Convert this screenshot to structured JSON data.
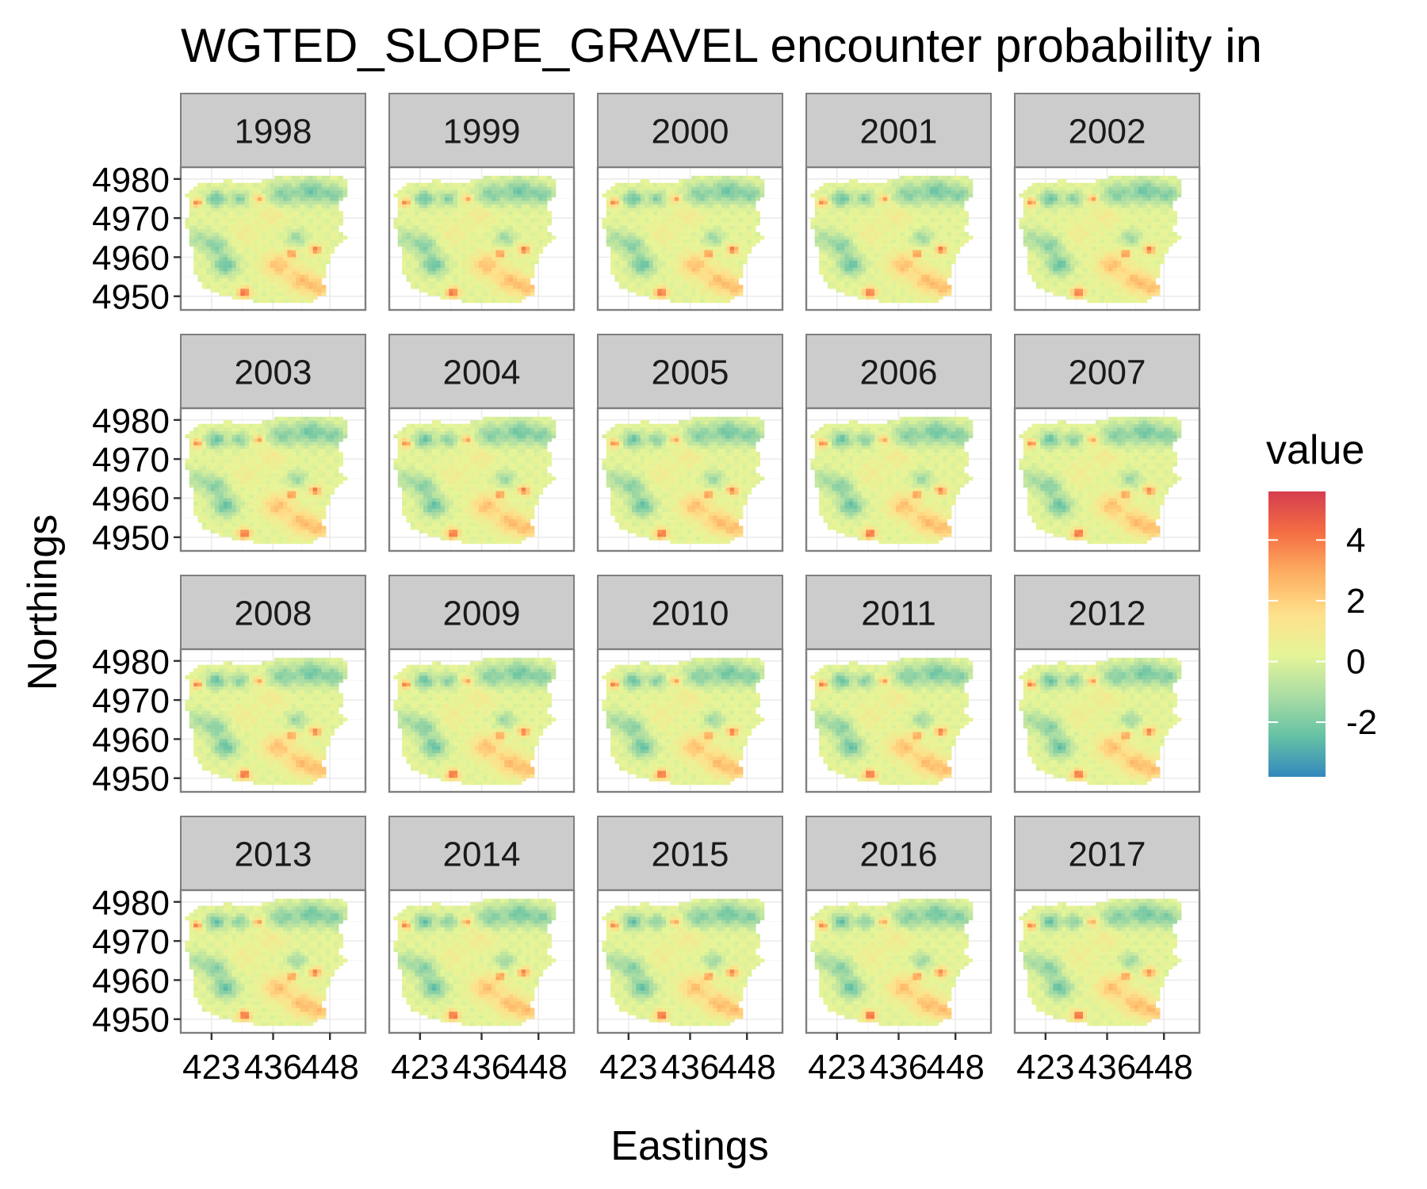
{
  "chart_data": {
    "type": "heatmap",
    "title": "WGTED_SLOPE_GRAVEL encounter probability in",
    "xlabel": "Eastings",
    "ylabel": "Northings",
    "facets": [
      "1998",
      "1999",
      "2000",
      "2001",
      "2002",
      "2003",
      "2004",
      "2005",
      "2006",
      "2007",
      "2008",
      "2009",
      "2010",
      "2011",
      "2012",
      "2013",
      "2014",
      "2015",
      "2016",
      "2017"
    ],
    "facet_layout": {
      "rows": 4,
      "cols": 5
    },
    "x_ticks": [
      423,
      436,
      448
    ],
    "x_tick_labels": [
      "423",
      "436",
      "448"
    ],
    "y_ticks": [
      4950,
      4960,
      4970,
      4980
    ],
    "y_tick_labels": [
      "4950",
      "4960",
      "4970",
      "4980"
    ],
    "xlim": [
      416.5,
      455.5
    ],
    "ylim": [
      4946.5,
      4983
    ],
    "grid": true,
    "legend": {
      "title": "value",
      "position": "right",
      "range": [
        -3.8,
        5.6
      ],
      "ticks": [
        -2,
        0,
        2,
        4
      ],
      "tick_labels": [
        "-2",
        "0",
        "2",
        "4"
      ],
      "colors": [
        "#3288bd",
        "#66c2a5",
        "#abdda4",
        "#e6f598",
        "#fee08b",
        "#fdae61",
        "#f46d43",
        "#d53e4f"
      ]
    },
    "field_components": [
      {
        "x": 424,
        "y": 4975,
        "value": -2.6,
        "spread": 2.0
      },
      {
        "x": 429,
        "y": 4975,
        "value": -2.0,
        "spread": 1.8
      },
      {
        "x": 438,
        "y": 4976,
        "value": -2.0,
        "spread": 3.0
      },
      {
        "x": 444,
        "y": 4977,
        "value": -2.4,
        "spread": 3.0
      },
      {
        "x": 449,
        "y": 4976,
        "value": -2.0,
        "spread": 2.5
      },
      {
        "x": 426,
        "y": 4958,
        "value": -2.6,
        "spread": 2.5
      },
      {
        "x": 424,
        "y": 4963,
        "value": -2.0,
        "spread": 2.5
      },
      {
        "x": 420,
        "y": 4965,
        "value": -1.2,
        "spread": 2.5
      },
      {
        "x": 441,
        "y": 4965,
        "value": -1.6,
        "spread": 2.0
      },
      {
        "x": 437,
        "y": 4958,
        "value": 2.2,
        "spread": 3.0
      },
      {
        "x": 442,
        "y": 4954,
        "value": 2.2,
        "spread": 3.0
      },
      {
        "x": 446,
        "y": 4952,
        "value": 2.0,
        "spread": 2.5
      },
      {
        "x": 445,
        "y": 4962,
        "value": 3.8,
        "spread": 1.2
      },
      {
        "x": 440,
        "y": 4961,
        "value": 3.5,
        "spread": 1.0
      },
      {
        "x": 433,
        "y": 4975,
        "value": 3.0,
        "spread": 1.0
      },
      {
        "x": 420,
        "y": 4974,
        "value": 3.8,
        "spread": 1.0
      },
      {
        "x": 430,
        "y": 4951,
        "value": 4.5,
        "spread": 1.3
      },
      {
        "x": 436,
        "y": 4971,
        "value": 0.8,
        "spread": 3.0
      },
      {
        "x": 430,
        "y": 4966,
        "value": 0.6,
        "spread": 3.0
      }
    ]
  }
}
